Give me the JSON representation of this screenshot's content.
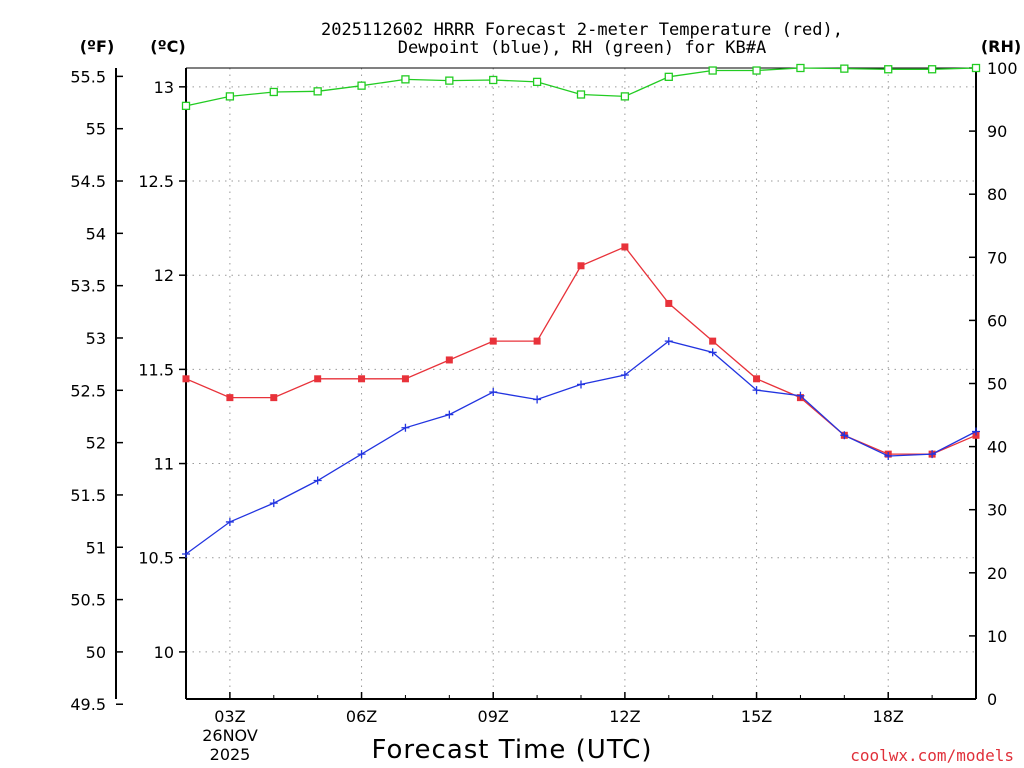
{
  "chart_data": {
    "type": "line",
    "title": "2025112602 HRRR Forecast 2-meter Temperature (red),",
    "subtitle": "Dewpoint (blue), RH (green) for KB#A",
    "xlabel": "Forecast Time (UTC)",
    "units": {
      "fahrenheit": "(ºF)",
      "celsius": "(ºC)",
      "rh": "(RH)"
    },
    "x": [
      2,
      3,
      4,
      5,
      6,
      7,
      8,
      9,
      10,
      11,
      12,
      13,
      14,
      15,
      16,
      17,
      18,
      19,
      20
    ],
    "xlim": [
      2,
      20
    ],
    "x_ticks": [
      {
        "x": 3,
        "label": "03Z"
      },
      {
        "x": 6,
        "label": "06Z"
      },
      {
        "x": 9,
        "label": "09Z"
      },
      {
        "x": 12,
        "label": "12Z"
      },
      {
        "x": 15,
        "label": "15Z"
      },
      {
        "x": 18,
        "label": "18Z"
      }
    ],
    "date_label": [
      "26NOV",
      "2025"
    ],
    "celsius_axis": {
      "ylim": [
        9.75,
        13.1
      ],
      "ticks": [
        "10",
        "10.5",
        "11",
        "11.5",
        "12",
        "12.5",
        "13"
      ]
    },
    "fahrenheit_axis": {
      "ylim": [
        49.55,
        55.58
      ],
      "ticks": [
        "49.5",
        "50",
        "50.5",
        "51",
        "51.5",
        "52",
        "52.5",
        "53",
        "53.5",
        "54",
        "54.5",
        "55",
        "55.5"
      ]
    },
    "rh_axis": {
      "ylim": [
        0,
        100
      ],
      "ticks": [
        "0",
        "10",
        "20",
        "30",
        "40",
        "50",
        "60",
        "70",
        "80",
        "90",
        "100"
      ]
    },
    "series": [
      {
        "name": "Temperature",
        "color": "#e8323a",
        "marker": "filled-square",
        "axis": "celsius",
        "values": [
          11.45,
          11.35,
          11.35,
          11.45,
          11.45,
          11.45,
          11.55,
          11.65,
          11.65,
          12.05,
          12.15,
          11.85,
          11.65,
          11.45,
          11.35,
          11.15,
          11.05,
          11.05,
          11.15
        ]
      },
      {
        "name": "Dewpoint",
        "color": "#2234e0",
        "marker": "plus",
        "axis": "celsius",
        "values": [
          10.52,
          10.69,
          10.79,
          10.91,
          11.05,
          11.19,
          11.26,
          11.38,
          11.34,
          11.42,
          11.47,
          11.65,
          11.59,
          11.39,
          11.36,
          11.15,
          11.04,
          11.05,
          11.17
        ]
      },
      {
        "name": "RH",
        "color": "#22cc22",
        "marker": "open-square",
        "axis": "rh",
        "values": [
          94,
          95.5,
          96.2,
          96.3,
          97.2,
          98.2,
          98,
          98.1,
          97.8,
          95.8,
          95.5,
          98.6,
          99.6,
          99.6,
          100,
          99.9,
          99.8,
          99.8,
          100
        ]
      }
    ]
  },
  "watermark": "coolwx.com/models"
}
